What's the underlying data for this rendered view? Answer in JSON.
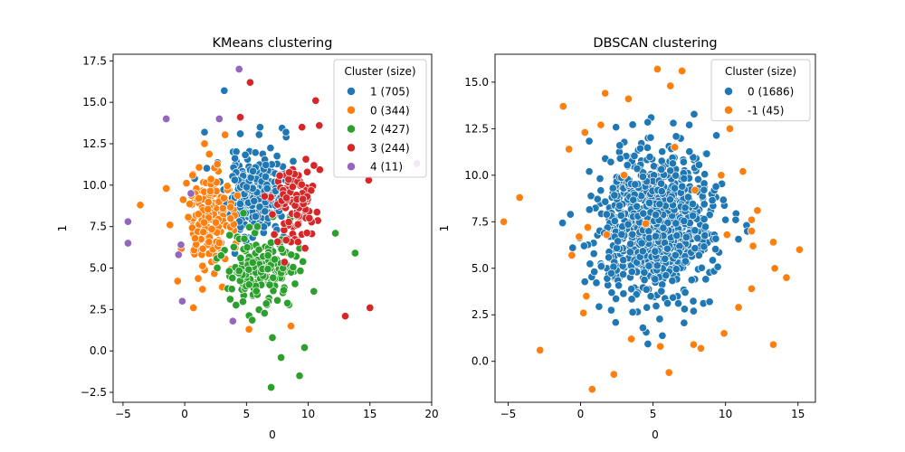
{
  "chart_data": [
    {
      "type": "scatter",
      "title": "KMeans clustering",
      "xlabel": "0",
      "ylabel": "1",
      "xlim": [
        -5.8,
        20.0
      ],
      "ylim": [
        -3.1,
        17.9
      ],
      "xticks": [
        -5,
        0,
        5,
        10,
        15,
        20
      ],
      "yticks": [
        -2.5,
        0.0,
        2.5,
        5.0,
        7.5,
        10.0,
        12.5,
        15.0,
        17.5
      ],
      "xtick_labels": [
        "−5",
        "0",
        "5",
        "10",
        "15",
        "20"
      ],
      "ytick_labels": [
        "−2.5",
        "0.0",
        "2.5",
        "5.0",
        "7.5",
        "10.0",
        "12.5",
        "15.0",
        "17.5"
      ],
      "grid": false,
      "legend": {
        "title": "Cluster (size)",
        "placement": "top-right"
      },
      "series": [
        {
          "name": "1 (705)",
          "color": "#1f77b4",
          "center": [
            5.6,
            9.3
          ],
          "spread": [
            1.1,
            1.2
          ],
          "n": 300,
          "seed": 11,
          "outliers": [
            [
              3.2,
              15.7
            ],
            [
              4.5,
              13.1
            ],
            [
              8.2,
              13.2
            ],
            [
              6.1,
              13.5
            ],
            [
              1.6,
              13.2
            ],
            [
              0.8,
              10.4
            ]
          ]
        },
        {
          "name": "0 (344)",
          "color": "#ff7f0e",
          "center": [
            2.0,
            7.8
          ],
          "spread": [
            1.0,
            1.6
          ],
          "n": 160,
          "seed": 23,
          "outliers": [
            [
              -3.6,
              8.8
            ],
            [
              -1.5,
              9.8
            ],
            [
              0.7,
              2.6
            ],
            [
              5.2,
              1.3
            ],
            [
              8.6,
              1.5
            ],
            [
              1.6,
              12.5
            ],
            [
              -1.2,
              7.6
            ]
          ]
        },
        {
          "name": "2 (427)",
          "color": "#2ca02c",
          "center": [
            6.4,
            4.9
          ],
          "spread": [
            1.4,
            1.1
          ],
          "n": 190,
          "seed": 37,
          "outliers": [
            [
              7.1,
              0.8
            ],
            [
              7.8,
              -0.4
            ],
            [
              9.7,
              0.2
            ],
            [
              7.0,
              -2.2
            ],
            [
              9.3,
              -1.5
            ],
            [
              13.8,
              5.9
            ],
            [
              12.2,
              7.1
            ]
          ]
        },
        {
          "name": "3 (244)",
          "color": "#d62728",
          "center": [
            8.9,
            8.8
          ],
          "spread": [
            0.9,
            1.2
          ],
          "n": 110,
          "seed": 53,
          "outliers": [
            [
              5.3,
              16.2
            ],
            [
              10.6,
              15.1
            ],
            [
              10.9,
              13.6
            ],
            [
              14.9,
              10.3
            ],
            [
              15.0,
              2.6
            ],
            [
              13.0,
              2.1
            ],
            [
              4.5,
              14.1
            ],
            [
              9.5,
              13.5
            ]
          ]
        },
        {
          "name": "4 (11)",
          "color": "#9467bd",
          "center": [
            0,
            0
          ],
          "spread": [
            0,
            0
          ],
          "n": 0,
          "seed": 1,
          "outliers": [
            [
              -4.6,
              7.8
            ],
            [
              -4.6,
              6.5
            ],
            [
              -1.5,
              14.0
            ],
            [
              2.8,
              14.0
            ],
            [
              4.4,
              17.0
            ],
            [
              -0.5,
              5.8
            ],
            [
              -0.2,
              3.0
            ],
            [
              -0.3,
              6.4
            ],
            [
              3.9,
              1.8
            ],
            [
              18.8,
              11.3
            ],
            [
              0.5,
              9.5
            ]
          ]
        }
      ]
    },
    {
      "type": "scatter",
      "title": "DBSCAN clustering",
      "xlabel": "0",
      "ylabel": "1",
      "xlim": [
        -5.9,
        16.2
      ],
      "ylim": [
        -2.2,
        16.5
      ],
      "xticks": [
        -5,
        0,
        5,
        10,
        15
      ],
      "yticks": [
        0.0,
        2.5,
        5.0,
        7.5,
        10.0,
        12.5,
        15.0
      ],
      "xtick_labels": [
        "−5",
        "0",
        "5",
        "10",
        "15"
      ],
      "ytick_labels": [
        "0.0",
        "2.5",
        "5.0",
        "7.5",
        "10.0",
        "12.5",
        "15.0"
      ],
      "grid": false,
      "legend": {
        "title": "Cluster (size)",
        "placement": "top-right"
      },
      "series": [
        {
          "name": "0 (1686)",
          "color": "#1f77b4",
          "center": [
            5.3,
            7.4
          ],
          "spread": [
            1.9,
            2.0
          ],
          "n": 900,
          "seed": 101,
          "outliers": [
            [
              6.4,
              12.8
            ],
            [
              7.5,
              12.7
            ],
            [
              2.7,
              11.6
            ],
            [
              0.6,
              10.2
            ],
            [
              1.8,
              7.9
            ],
            [
              -0.7,
              7.9
            ],
            [
              10.7,
              7.6
            ],
            [
              8.9,
              3.2
            ],
            [
              4.3,
              1.8
            ],
            [
              7.8,
              2.7
            ]
          ]
        },
        {
          "name": "-1 (45)",
          "color": "#ff7f0e",
          "center": [
            0,
            0
          ],
          "spread": [
            0,
            0
          ],
          "n": 0,
          "seed": 1,
          "outliers": [
            [
              5.3,
              15.7
            ],
            [
              7.0,
              15.6
            ],
            [
              3.3,
              14.1
            ],
            [
              1.7,
              14.4
            ],
            [
              -1.2,
              13.7
            ],
            [
              1.4,
              12.7
            ],
            [
              -0.8,
              11.4
            ],
            [
              0.3,
              12.3
            ],
            [
              6.5,
              11.5
            ],
            [
              10.3,
              12.5
            ],
            [
              -4.2,
              8.8
            ],
            [
              -5.3,
              7.5
            ],
            [
              -0.1,
              6.7
            ],
            [
              0.5,
              7.2
            ],
            [
              -0.6,
              5.7
            ],
            [
              0.4,
              3.5
            ],
            [
              0.2,
              2.6
            ],
            [
              -2.8,
              0.6
            ],
            [
              0.8,
              -1.5
            ],
            [
              2.3,
              -0.7
            ],
            [
              3.5,
              1.2
            ],
            [
              5.5,
              0.8
            ],
            [
              6.1,
              -0.6
            ],
            [
              7.8,
              0.9
            ],
            [
              8.3,
              0.7
            ],
            [
              9.9,
              1.5
            ],
            [
              10.9,
              2.9
            ],
            [
              11.8,
              3.9
            ],
            [
              13.3,
              0.9
            ],
            [
              13.4,
              5.0
            ],
            [
              14.2,
              4.5
            ],
            [
              15.1,
              6.0
            ],
            [
              13.3,
              6.4
            ],
            [
              11.9,
              6.2
            ],
            [
              11.8,
              7.0
            ],
            [
              11.8,
              7.6
            ],
            [
              10.1,
              6.8
            ],
            [
              4.5,
              7.4
            ],
            [
              1.8,
              6.8
            ],
            [
              11.2,
              10.2
            ],
            [
              12.2,
              8.1
            ],
            [
              9.7,
              10.0
            ],
            [
              7.9,
              9.2
            ],
            [
              3.0,
              10.0
            ],
            [
              6.2,
              14.8
            ]
          ]
        }
      ]
    }
  ]
}
